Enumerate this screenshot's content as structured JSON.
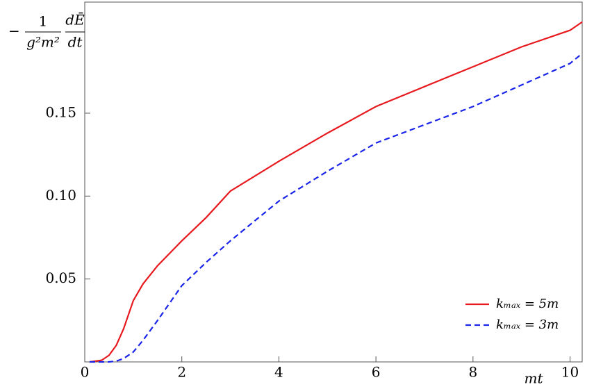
{
  "chart_data": {
    "type": "line",
    "y_label": {
      "sign": "−",
      "numerator": "1",
      "denominator": "g²m²",
      "derivative_top": "dĒ",
      "derivative_bottom": "dt"
    },
    "x_label": "mt",
    "x": [
      0.1,
      0.35,
      0.5,
      0.65,
      0.8,
      1.0,
      1.2,
      1.5,
      2,
      2.5,
      3,
      4,
      5,
      6,
      7,
      8,
      9,
      10,
      10.25
    ],
    "series": [
      {
        "name": "kₘₐₓ = 5m",
        "color": "#e8191e",
        "dash": false,
        "values": [
          0,
          0.001,
          0.004,
          0.01,
          0.02,
          0.037,
          0.047,
          0.058,
          0.073,
          0.087,
          0.103,
          0.121,
          0.138,
          0.154,
          0.166,
          0.178,
          0.19,
          0.2,
          0.205
        ]
      },
      {
        "name": "kₘₐₓ = 3m",
        "color": "#1a24e8",
        "dash": true,
        "values": [
          0,
          0,
          0,
          0.0005,
          0.002,
          0.006,
          0.013,
          0.025,
          0.046,
          0.06,
          0.073,
          0.097,
          0.115,
          0.132,
          0.143,
          0.154,
          0.167,
          0.18,
          0.186
        ]
      }
    ],
    "xlim": [
      0,
      10.25
    ],
    "ylim": [
      0,
      0.217
    ],
    "xticks": [
      0,
      2,
      4,
      6,
      8,
      10
    ],
    "yticks": [
      0.05,
      {
        "value": 0.1,
        "label": "0.10"
      },
      0.15
    ],
    "legend": "bottom-right"
  }
}
